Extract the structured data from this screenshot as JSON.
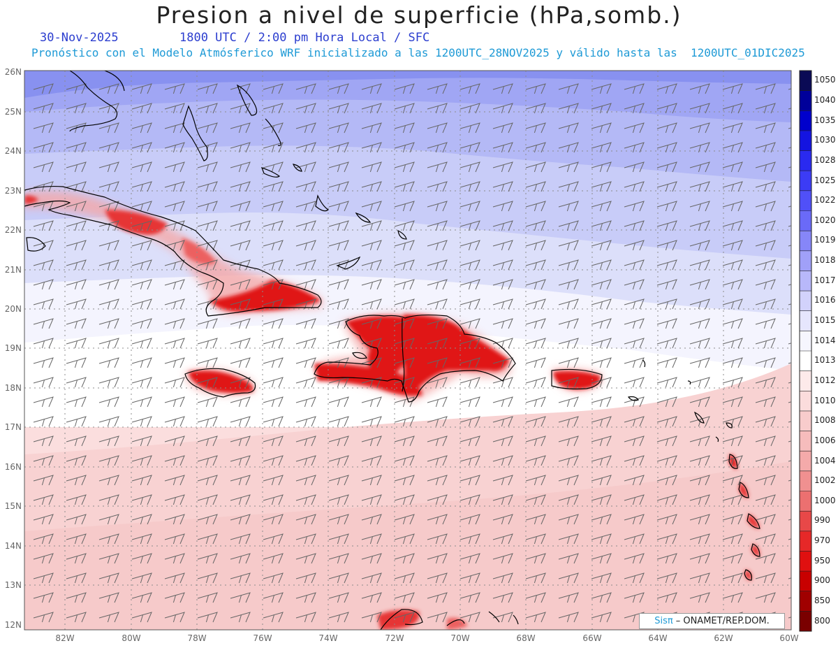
{
  "header": {
    "title": "Presion a nivel de superficie (hPa,somb.)",
    "date": "30-Nov-2025",
    "time": "1800 UTC / 2:00 pm Hora Local / SFC",
    "forecast_info": "Pronóstico con el Modelo Atmósferico WRF inicializado a las 1200UTC_28NOV2025 y válido hasta las  1200UTC_01DIC2025"
  },
  "map": {
    "lat_labels": [
      "26N",
      "25N",
      "24N",
      "23N",
      "22N",
      "21N",
      "20N",
      "19N",
      "18N",
      "17N",
      "16N",
      "15N",
      "14N",
      "13N",
      "12N"
    ],
    "lon_labels": [
      "82W",
      "80W",
      "78W",
      "76W",
      "74W",
      "72W",
      "70W",
      "68W",
      "66W",
      "64W",
      "62W",
      "60W"
    ],
    "extent": {
      "lon_min": -83.25,
      "lon_max": -60,
      "lat_min": 11.85,
      "lat_max": 26.05
    },
    "colors": {
      "high_pressure": "#8891f0",
      "mid_pressure": "#c8ccf8",
      "neutral": "#ffffff",
      "low_pressure": "#fbdede",
      "land_low": "#e01418",
      "coastline": "#000000",
      "grid": "#8c8c8c"
    }
  },
  "colorbar": {
    "levels": [
      "1050",
      "1040",
      "1035",
      "1030",
      "1028",
      "1025",
      "1022",
      "1020",
      "1019",
      "1018",
      "1017",
      "1016",
      "1015",
      "1014",
      "1013",
      "1012",
      "1010",
      "1008",
      "1006",
      "1004",
      "1002",
      "1000",
      "990",
      "970",
      "950",
      "900",
      "850",
      "800"
    ],
    "colors": [
      "#0a0a55",
      "#00009a",
      "#0000cc",
      "#1414e0",
      "#2a2af0",
      "#3c3cf5",
      "#5050f8",
      "#6a6af8",
      "#8686f8",
      "#a0a0f8",
      "#b8b8fa",
      "#d2d2fb",
      "#e6e6fd",
      "#f6f6fe",
      "#ffffff",
      "#fdeaea",
      "#fbdcdc",
      "#f8cccc",
      "#f6bcbc",
      "#f4aaaa",
      "#f09090",
      "#ec7070",
      "#e84848",
      "#e62828",
      "#e01010",
      "#c80000",
      "#a00000",
      "#7a0000"
    ]
  },
  "credit": {
    "brand": "Sisπ",
    "text": "– ONAMET/REP.DOM."
  }
}
